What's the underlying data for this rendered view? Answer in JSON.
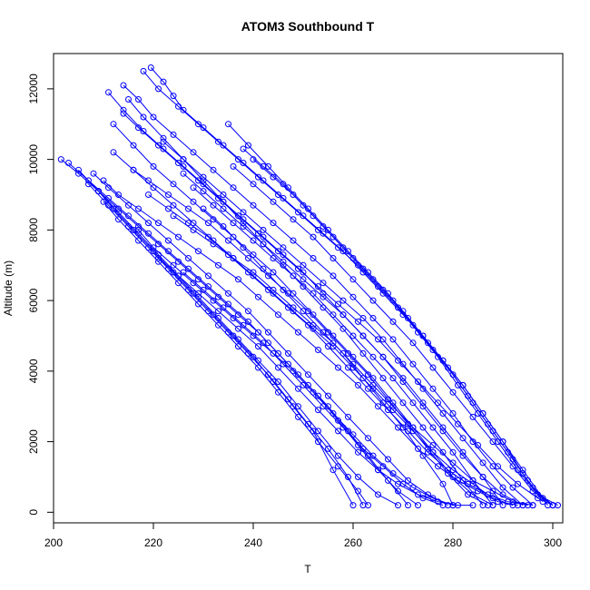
{
  "chart_data": {
    "type": "line",
    "title": "ATOM3 Southbound T",
    "xlabel": "T",
    "ylabel": "Altitude (m)",
    "xlim": [
      200,
      302
    ],
    "ylim": [
      -300,
      13000
    ],
    "xticks": [
      200,
      220,
      240,
      260,
      280,
      300
    ],
    "yticks": [
      0,
      2000,
      4000,
      6000,
      8000,
      10000,
      12000
    ],
    "grid": false,
    "legend": "none",
    "color": "#0000ff",
    "marker": "open-circle",
    "series": [
      {
        "x": [
          219.5,
          222,
          224,
          226,
          230,
          234,
          238,
          242,
          246,
          250,
          254,
          258,
          262,
          266,
          270,
          274,
          278,
          282,
          286,
          290,
          294,
          298,
          300
        ],
        "y": [
          12600,
          12200,
          11800,
          11400,
          10900,
          10400,
          9900,
          9400,
          8900,
          8400,
          7900,
          7400,
          6800,
          6200,
          5600,
          5000,
          4300,
          3600,
          2800,
          2000,
          1200,
          400,
          200
        ]
      },
      {
        "x": [
          218,
          221,
          225,
          229,
          233,
          237,
          241,
          245,
          249,
          253,
          257,
          261,
          265,
          269,
          273,
          277,
          281,
          285,
          289,
          293,
          297,
          301
        ],
        "y": [
          12500,
          12000,
          11500,
          11000,
          10500,
          10000,
          9500,
          9000,
          8500,
          8000,
          7500,
          7000,
          6400,
          5800,
          5100,
          4400,
          3600,
          2800,
          2000,
          1200,
          500,
          200
        ]
      },
      {
        "x": [
          214,
          217,
          220,
          224,
          228,
          232,
          236,
          240,
          244,
          248,
          252,
          256,
          260,
          264,
          268,
          272,
          276,
          280,
          284,
          288,
          292,
          296
        ],
        "y": [
          12100,
          11700,
          11200,
          10700,
          10200,
          9700,
          9200,
          8700,
          8200,
          7700,
          7200,
          6700,
          6100,
          5500,
          4900,
          4200,
          3500,
          2800,
          2000,
          1300,
          700,
          200
        ]
      },
      {
        "x": [
          211,
          214,
          218,
          222,
          226,
          230,
          234,
          238,
          242,
          246,
          250,
          254,
          258,
          262,
          266,
          270,
          274,
          278,
          282,
          286,
          290,
          294
        ],
        "y": [
          11900,
          11400,
          10800,
          10300,
          9800,
          9300,
          8800,
          8300,
          7800,
          7300,
          6800,
          6200,
          5600,
          5000,
          4400,
          3700,
          3000,
          2300,
          1600,
          1000,
          500,
          200
        ]
      },
      {
        "x": [
          212,
          216,
          220,
          224,
          228,
          232,
          236,
          240,
          244,
          248,
          252,
          256,
          260,
          264,
          268,
          272,
          276,
          280,
          284,
          288
        ],
        "y": [
          11000,
          10400,
          9800,
          9300,
          8800,
          8300,
          7800,
          7300,
          6800,
          6200,
          5600,
          5000,
          4400,
          3800,
          3100,
          2400,
          1700,
          1000,
          500,
          200
        ]
      },
      {
        "x": [
          216,
          219,
          223,
          227,
          231,
          235,
          239,
          243,
          247,
          251,
          255,
          259,
          263,
          267,
          271,
          275,
          279,
          283,
          287
        ],
        "y": [
          9700,
          9400,
          9000,
          8600,
          8200,
          7700,
          7200,
          6700,
          6200,
          5700,
          5100,
          4500,
          3900,
          3200,
          2500,
          1800,
          1100,
          500,
          200
        ]
      },
      {
        "x": [
          201.5,
          205,
          209,
          213,
          217,
          221,
          225,
          229,
          233,
          237,
          241,
          245,
          249,
          253,
          257,
          261,
          265,
          269,
          273
        ],
        "y": [
          10000,
          9600,
          9100,
          8600,
          8100,
          7600,
          7100,
          6600,
          6100,
          5600,
          5100,
          4500,
          3900,
          3300,
          2600,
          1900,
          1200,
          600,
          200
        ]
      },
      {
        "x": [
          203,
          207,
          211,
          215,
          219,
          223,
          227,
          231,
          235,
          239,
          243,
          247,
          251,
          255,
          259,
          263,
          267,
          271
        ],
        "y": [
          9900,
          9400,
          8900,
          8400,
          7900,
          7400,
          6900,
          6400,
          5900,
          5400,
          4800,
          4200,
          3600,
          3000,
          2300,
          1600,
          900,
          200
        ]
      },
      {
        "x": [
          210,
          213,
          217,
          221,
          225,
          229,
          233,
          237,
          241,
          245,
          249,
          253,
          257,
          261,
          265,
          269,
          273,
          277,
          281,
          285,
          289,
          293
        ],
        "y": [
          9400,
          9000,
          8600,
          8200,
          7800,
          7400,
          7000,
          6600,
          6100,
          5600,
          5100,
          4600,
          4100,
          3600,
          3000,
          2400,
          1800,
          1300,
          900,
          600,
          300,
          200
        ]
      },
      {
        "x": [
          214,
          217,
          221,
          225,
          229,
          233,
          237,
          241,
          245,
          249,
          253,
          257,
          261,
          265,
          269,
          273,
          277,
          281,
          285,
          289,
          293,
          297,
          300
        ],
        "y": [
          11300,
          10900,
          10400,
          9900,
          9400,
          8900,
          8400,
          7900,
          7400,
          6900,
          6400,
          5900,
          5400,
          4900,
          4300,
          3700,
          3100,
          2500,
          1900,
          1300,
          800,
          400,
          200
        ]
      },
      {
        "x": [
          208,
          211,
          215,
          219,
          223,
          227,
          231,
          235,
          239,
          243,
          247,
          251,
          255,
          259,
          263,
          267,
          271,
          275,
          279
        ],
        "y": [
          9600,
          9200,
          8700,
          8200,
          7700,
          7200,
          6700,
          6200,
          5700,
          5100,
          4500,
          3900,
          3300,
          2700,
          2100,
          1500,
          900,
          500,
          200
        ]
      },
      {
        "x": [
          209,
          212,
          216,
          220,
          224,
          228,
          232,
          236,
          240,
          244,
          248,
          252,
          256,
          260
        ],
        "y": [
          9100,
          8600,
          8000,
          7400,
          6800,
          6200,
          5600,
          5000,
          4400,
          3700,
          3000,
          2300,
          1200,
          200
        ]
      },
      {
        "x": [
          210,
          213,
          217,
          221,
          225,
          229,
          233,
          237,
          241,
          245,
          249,
          253,
          257,
          261,
          263
        ],
        "y": [
          8800,
          8300,
          7700,
          7100,
          6500,
          5900,
          5300,
          4700,
          4100,
          3400,
          2700,
          2000,
          1300,
          600,
          200
        ]
      },
      {
        "x": [
          217,
          220,
          224,
          228,
          232,
          236,
          240,
          244,
          248,
          252,
          256,
          260,
          264,
          268,
          272,
          276,
          280,
          284
        ],
        "y": [
          8000,
          7500,
          7000,
          6500,
          6000,
          5500,
          5000,
          4500,
          4000,
          3400,
          2800,
          2200,
          1600,
          1100,
          700,
          400,
          200,
          200
        ]
      },
      {
        "x": [
          222,
          226,
          230,
          234,
          238,
          242,
          246,
          250,
          254,
          258,
          262,
          266,
          270,
          274,
          278,
          282,
          286,
          290,
          294
        ],
        "y": [
          10500,
          10000,
          9500,
          9000,
          8500,
          8000,
          7500,
          7000,
          6500,
          6000,
          5500,
          4900,
          4200,
          3500,
          2800,
          2100,
          1400,
          700,
          200
        ]
      },
      {
        "x": [
          226,
          230,
          234,
          238,
          242,
          246,
          250,
          254,
          258,
          262,
          266,
          270,
          274,
          278,
          282,
          286,
          290
        ],
        "y": [
          9600,
          9100,
          8600,
          8100,
          7600,
          7100,
          6600,
          6100,
          5600,
          5000,
          4400,
          3800,
          3100,
          2400,
          1700,
          1000,
          200
        ]
      },
      {
        "x": [
          228,
          232,
          236,
          240,
          244,
          248,
          252,
          256,
          260,
          264,
          268,
          272,
          276,
          280,
          284,
          288
        ],
        "y": [
          9200,
          8700,
          8200,
          7700,
          7200,
          6700,
          6200,
          5600,
          5000,
          4400,
          3800,
          3100,
          2400,
          1700,
          900,
          200
        ]
      },
      {
        "x": [
          230,
          234,
          238,
          242,
          246,
          250,
          254,
          258,
          262,
          266,
          270,
          274,
          278,
          280
        ],
        "y": [
          8600,
          8100,
          7500,
          6900,
          6300,
          5700,
          5100,
          4500,
          3800,
          3100,
          2400,
          1600,
          800,
          200
        ]
      },
      {
        "x": [
          235,
          239,
          243,
          247,
          251,
          255,
          259,
          263,
          267,
          271,
          275,
          279,
          283,
          287,
          291,
          295,
          299
        ],
        "y": [
          11000,
          10400,
          9800,
          9200,
          8600,
          8000,
          7400,
          6800,
          6200,
          5500,
          4800,
          4100,
          3300,
          2500,
          1700,
          900,
          200
        ]
      },
      {
        "x": [
          238,
          242,
          246,
          250,
          254,
          258,
          262,
          266,
          270,
          274,
          278,
          282,
          286,
          290,
          294,
          298
        ],
        "y": [
          10300,
          9800,
          9300,
          8700,
          8100,
          7500,
          6900,
          6300,
          5700,
          5000,
          4300,
          3600,
          2800,
          2000,
          1100,
          300
        ]
      },
      {
        "x": [
          212,
          216,
          220,
          224,
          228,
          232,
          236,
          240,
          244,
          248,
          252,
          256,
          260,
          264,
          268,
          272,
          276,
          280,
          284,
          288,
          292
        ],
        "y": [
          10200,
          9700,
          9200,
          8700,
          8200,
          7700,
          7200,
          6700,
          6200,
          5700,
          5200,
          4700,
          4100,
          3500,
          2900,
          2300,
          1700,
          1200,
          800,
          400,
          200
        ]
      },
      {
        "x": [
          215,
          218,
          222,
          226,
          230,
          234,
          238,
          242,
          246,
          250,
          254,
          258,
          262,
          266,
          270,
          274,
          278,
          282,
          286
        ],
        "y": [
          11700,
          11200,
          10600,
          10000,
          9400,
          8800,
          8200,
          7600,
          7000,
          6400,
          5800,
          5200,
          4500,
          3800,
          3100,
          2400,
          1700,
          900,
          200
        ]
      },
      {
        "x": [
          205,
          209,
          213,
          217,
          221,
          225,
          229,
          233,
          237,
          241,
          245,
          249,
          253,
          257,
          261,
          265,
          269
        ],
        "y": [
          9700,
          9100,
          8500,
          7900,
          7300,
          6700,
          6100,
          5500,
          4900,
          4300,
          3700,
          3000,
          2300,
          1600,
          1000,
          500,
          200
        ]
      },
      {
        "x": [
          207,
          211,
          215,
          219,
          223,
          227,
          231,
          235,
          239,
          243,
          247,
          251,
          255,
          259,
          262
        ],
        "y": [
          9300,
          8700,
          8100,
          7500,
          6900,
          6300,
          5700,
          5100,
          4500,
          3900,
          3200,
          2500,
          1800,
          1000,
          200
        ]
      },
      {
        "x": [
          219,
          223,
          227,
          231,
          235,
          239,
          243,
          247,
          251,
          255,
          259,
          263,
          267,
          271,
          275,
          279,
          283,
          287,
          291,
          295
        ],
        "y": [
          9000,
          8600,
          8200,
          7800,
          7300,
          6800,
          6300,
          5800,
          5300,
          4700,
          4100,
          3500,
          2900,
          2300,
          1700,
          1200,
          800,
          500,
          300,
          200
        ]
      },
      {
        "x": [
          224,
          228,
          232,
          236,
          240,
          244,
          248,
          252,
          256,
          260,
          264,
          268,
          272,
          276,
          280,
          284,
          288,
          292,
          296
        ],
        "y": [
          8400,
          8000,
          7600,
          7200,
          6800,
          6300,
          5800,
          5300,
          4800,
          4200,
          3600,
          3000,
          2400,
          1900,
          1400,
          900,
          600,
          300,
          200
        ]
      },
      {
        "x": [
          236,
          240,
          244,
          248,
          252,
          256,
          260,
          264,
          268,
          272,
          276,
          280,
          284,
          288,
          292,
          296,
          300
        ],
        "y": [
          9800,
          9300,
          8800,
          8300,
          7800,
          7200,
          6600,
          6000,
          5400,
          4800,
          4100,
          3400,
          2700,
          2000,
          1300,
          600,
          200
        ]
      },
      {
        "x": [
          240,
          244,
          248,
          252,
          256,
          260,
          264,
          268,
          272,
          276,
          280,
          284,
          288,
          292,
          296,
          300
        ],
        "y": [
          10000,
          9500,
          9000,
          8400,
          7800,
          7200,
          6600,
          6000,
          5300,
          4600,
          3900,
          3100,
          2300,
          1500,
          700,
          200
        ]
      },
      {
        "x": [
          221,
          225,
          229,
          233,
          237,
          241,
          245,
          249,
          253,
          257,
          261,
          265,
          269,
          273,
          277,
          281
        ],
        "y": [
          7200,
          6700,
          6200,
          5700,
          5200,
          4700,
          4100,
          3500,
          2900,
          2300,
          1700,
          1200,
          800,
          500,
          300,
          200
        ]
      },
      {
        "x": [
          226,
          230,
          234,
          238,
          242,
          246,
          250,
          254,
          258,
          262,
          266,
          270,
          274,
          278
        ],
        "y": [
          6800,
          6300,
          5800,
          5300,
          4800,
          4200,
          3600,
          3000,
          2400,
          1800,
          1300,
          800,
          400,
          200
        ]
      }
    ]
  }
}
